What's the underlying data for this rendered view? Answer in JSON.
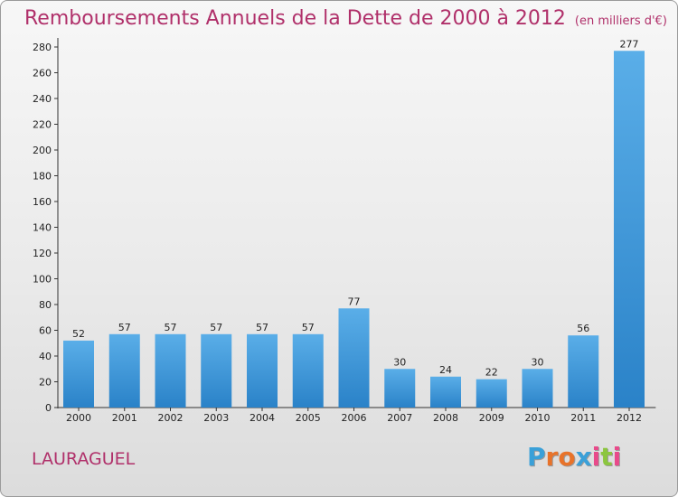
{
  "title": "Remboursements Annuels de la Dette de 2000 à 2012",
  "unit": "(en milliers d'€)",
  "commune": "LAURAGUEL",
  "logo": {
    "text": "Proxiti",
    "letters": [
      "P",
      "r",
      "o",
      "x",
      "i",
      "t",
      "i"
    ],
    "colors": [
      "#3aa0d8",
      "#e8732a",
      "#e8732a",
      "#3aa0d8",
      "#e84a8a",
      "#8cc63f",
      "#e84a8a"
    ]
  },
  "colors": {
    "title": "#b0306a",
    "bar_top": "#5aaee8",
    "bar_bottom": "#2a82c8"
  },
  "chart_data": {
    "type": "bar",
    "categories": [
      "2000",
      "2001",
      "2002",
      "2003",
      "2004",
      "2005",
      "2006",
      "2007",
      "2008",
      "2009",
      "2010",
      "2011",
      "2012"
    ],
    "values": [
      52,
      57,
      57,
      57,
      57,
      57,
      77,
      30,
      24,
      22,
      30,
      56,
      277
    ],
    "title": "Remboursements Annuels de la Dette de 2000 à 2012",
    "xlabel": "",
    "ylabel": "",
    "ylim": [
      0,
      280
    ],
    "yticks": [
      0,
      20,
      40,
      60,
      80,
      100,
      120,
      140,
      160,
      180,
      200,
      220,
      240,
      260,
      280
    ],
    "grid": false,
    "data_labels": true
  }
}
